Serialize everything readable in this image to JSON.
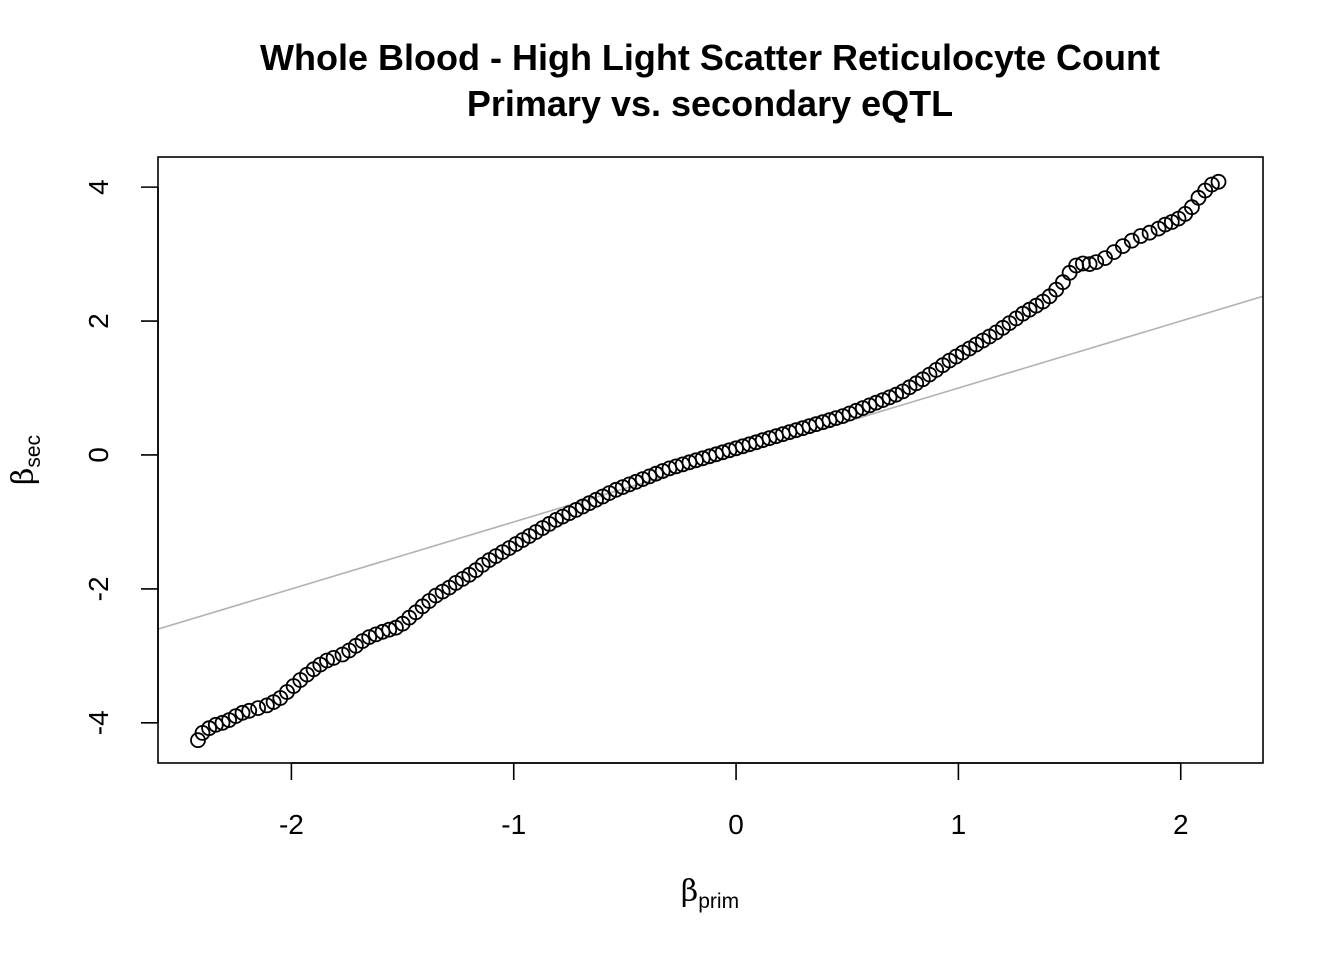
{
  "chart_data": {
    "type": "scatter",
    "title": "Whole Blood - High Light Scatter Reticulocyte Count",
    "subtitle": "Primary vs. secondary eQTL",
    "xlabel": {
      "symbol": "β",
      "subscript": "prim"
    },
    "ylabel": {
      "symbol": "β",
      "subscript": "sec"
    },
    "xlim": [
      -2.6,
      2.37
    ],
    "ylim": [
      -4.6,
      4.45
    ],
    "xticks": [
      -2,
      -1,
      0,
      1,
      2
    ],
    "yticks": [
      -4,
      -2,
      0,
      2,
      4
    ],
    "xtick_labels": [
      "-2",
      "-1",
      "0",
      "1",
      "2"
    ],
    "ytick_labels": [
      "-4",
      "-2",
      "0",
      "2",
      "4"
    ],
    "reference_line": {
      "slope": 1,
      "intercept": 0,
      "color": "#b3b3b3"
    },
    "point_color": "#000000",
    "series": [
      {
        "marker": "open-circle",
        "x": [
          -2.42,
          -2.4,
          -2.37,
          -2.34,
          -2.31,
          -2.28,
          -2.25,
          -2.22,
          -2.19,
          -2.15,
          -2.11,
          -2.08,
          -2.05,
          -2.02,
          -1.99,
          -1.96,
          -1.93,
          -1.9,
          -1.87,
          -1.84,
          -1.81,
          -1.77,
          -1.74,
          -1.71,
          -1.68,
          -1.65,
          -1.62,
          -1.59,
          -1.56,
          -1.53,
          -1.5,
          -1.47,
          -1.44,
          -1.41,
          -1.38,
          -1.35,
          -1.32,
          -1.29,
          -1.26,
          -1.23,
          -1.2,
          -1.17,
          -1.14,
          -1.11,
          -1.08,
          -1.05,
          -1.02,
          -0.99,
          -0.96,
          -0.93,
          -0.9,
          -0.87,
          -0.84,
          -0.81,
          -0.78,
          -0.75,
          -0.72,
          -0.69,
          -0.66,
          -0.63,
          -0.6,
          -0.57,
          -0.54,
          -0.51,
          -0.48,
          -0.45,
          -0.42,
          -0.39,
          -0.36,
          -0.33,
          -0.3,
          -0.27,
          -0.24,
          -0.21,
          -0.18,
          -0.15,
          -0.12,
          -0.09,
          -0.06,
          -0.03,
          0.0,
          0.03,
          0.06,
          0.09,
          0.12,
          0.15,
          0.18,
          0.21,
          0.24,
          0.27,
          0.3,
          0.33,
          0.36,
          0.39,
          0.42,
          0.45,
          0.48,
          0.51,
          0.54,
          0.57,
          0.6,
          0.63,
          0.66,
          0.69,
          0.72,
          0.75,
          0.78,
          0.81,
          0.84,
          0.87,
          0.9,
          0.93,
          0.96,
          0.99,
          1.02,
          1.05,
          1.08,
          1.11,
          1.14,
          1.17,
          1.2,
          1.23,
          1.26,
          1.29,
          1.32,
          1.35,
          1.38,
          1.41,
          1.44,
          1.47,
          1.5,
          1.53,
          1.56,
          1.59,
          1.62,
          1.66,
          1.7,
          1.74,
          1.78,
          1.82,
          1.86,
          1.9,
          1.93,
          1.96,
          1.99,
          2.02,
          2.05,
          2.08,
          2.11,
          2.14,
          2.17
        ],
        "y": [
          -4.26,
          -4.15,
          -4.08,
          -4.03,
          -4.0,
          -3.96,
          -3.9,
          -3.85,
          -3.82,
          -3.78,
          -3.74,
          -3.69,
          -3.63,
          -3.54,
          -3.45,
          -3.36,
          -3.28,
          -3.2,
          -3.13,
          -3.07,
          -3.03,
          -2.98,
          -2.92,
          -2.85,
          -2.78,
          -2.72,
          -2.68,
          -2.64,
          -2.61,
          -2.58,
          -2.52,
          -2.43,
          -2.35,
          -2.26,
          -2.18,
          -2.1,
          -2.04,
          -1.98,
          -1.91,
          -1.85,
          -1.79,
          -1.72,
          -1.64,
          -1.57,
          -1.51,
          -1.45,
          -1.39,
          -1.33,
          -1.27,
          -1.21,
          -1.15,
          -1.09,
          -1.03,
          -0.97,
          -0.92,
          -0.87,
          -0.82,
          -0.77,
          -0.72,
          -0.67,
          -0.62,
          -0.57,
          -0.52,
          -0.48,
          -0.44,
          -0.4,
          -0.36,
          -0.32,
          -0.28,
          -0.24,
          -0.2,
          -0.17,
          -0.14,
          -0.11,
          -0.08,
          -0.05,
          -0.02,
          0.01,
          0.04,
          0.07,
          0.1,
          0.13,
          0.16,
          0.19,
          0.22,
          0.25,
          0.28,
          0.31,
          0.34,
          0.37,
          0.4,
          0.43,
          0.46,
          0.49,
          0.52,
          0.55,
          0.58,
          0.62,
          0.66,
          0.7,
          0.74,
          0.78,
          0.82,
          0.86,
          0.9,
          0.95,
          1.01,
          1.07,
          1.13,
          1.2,
          1.27,
          1.34,
          1.41,
          1.47,
          1.53,
          1.59,
          1.65,
          1.71,
          1.77,
          1.83,
          1.9,
          1.97,
          2.04,
          2.11,
          2.17,
          2.23,
          2.29,
          2.37,
          2.47,
          2.58,
          2.72,
          2.83,
          2.86,
          2.85,
          2.88,
          2.94,
          3.03,
          3.12,
          3.2,
          3.27,
          3.32,
          3.38,
          3.44,
          3.48,
          3.53,
          3.6,
          3.7,
          3.84,
          3.95,
          4.04,
          4.08
        ]
      }
    ]
  }
}
